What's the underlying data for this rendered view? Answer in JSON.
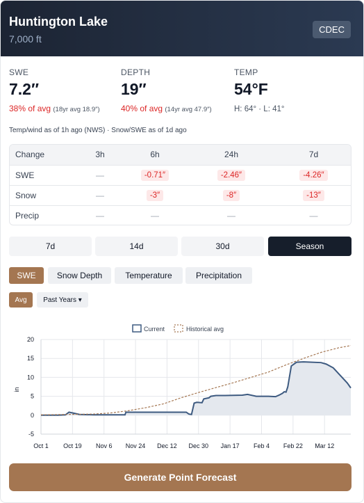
{
  "header": {
    "title": "Huntington Lake",
    "elevation": "7,000 ft",
    "source_badge": "CDEC"
  },
  "metrics": {
    "swe": {
      "label": "SWE",
      "value": "7.2″",
      "pct": "38% of avg",
      "avg_note": "(18yr avg 18.9″)"
    },
    "depth": {
      "label": "DEPTH",
      "value": "19″",
      "pct": "40% of avg",
      "avg_note": "(14yr avg 47.9″)"
    },
    "temp": {
      "label": "TEMP",
      "value": "54°F",
      "hilo": "H: 64° · L: 41°"
    }
  },
  "asof": "Temp/wind as of 1h ago (NWS) · Snow/SWE as of 1d ago",
  "change_table": {
    "headers": [
      "Change",
      "3h",
      "6h",
      "24h",
      "7d"
    ],
    "rows": [
      {
        "label": "SWE",
        "cells": [
          "—",
          "-0.71″",
          "-2.46″",
          "-4.26″"
        ]
      },
      {
        "label": "Snow",
        "cells": [
          "—",
          "-3″",
          "-8″",
          "-13″"
        ]
      },
      {
        "label": "Precip",
        "cells": [
          "—",
          "—",
          "—",
          "—"
        ]
      }
    ]
  },
  "ranges": [
    "7d",
    "14d",
    "30d",
    "Season"
  ],
  "active_range": "Season",
  "metric_tabs": [
    "SWE",
    "Snow Depth",
    "Temperature",
    "Precipitation"
  ],
  "active_metric": "SWE",
  "avg_toggle": "Avg",
  "past_years": "Past Years ▾",
  "colors": {
    "accent": "#a47651",
    "current": "#3d5a80",
    "historical": "#a47651",
    "negative": "#dc2626"
  },
  "chart_data": {
    "type": "area",
    "ylabel": "in",
    "ylim": [
      -5,
      20
    ],
    "yticks": [
      -5,
      0,
      5,
      10,
      15,
      20
    ],
    "x_tick_labels": [
      "Oct 1",
      "Oct 19",
      "Nov 6",
      "Nov 24",
      "Dec 12",
      "Dec 30",
      "Jan 17",
      "Feb 4",
      "Feb 22",
      "Mar 12"
    ],
    "x_tick_days": [
      0,
      18,
      36,
      54,
      72,
      90,
      108,
      126,
      144,
      162
    ],
    "legend": [
      "Current",
      "Historical avg"
    ],
    "legend_position": "top",
    "grid": true,
    "series": [
      {
        "name": "Current",
        "style": "solid-area",
        "points": [
          [
            0,
            0
          ],
          [
            10,
            0
          ],
          [
            14,
            0.1
          ],
          [
            16,
            0.8
          ],
          [
            18,
            0.6
          ],
          [
            22,
            0.2
          ],
          [
            30,
            0.1
          ],
          [
            48,
            0.1
          ],
          [
            48.5,
            0.8
          ],
          [
            60,
            0.8
          ],
          [
            72,
            0.8
          ],
          [
            83,
            0.8
          ],
          [
            84.5,
            0.3
          ],
          [
            86,
            0.2
          ],
          [
            87.5,
            3.2
          ],
          [
            89,
            3.4
          ],
          [
            92,
            3.3
          ],
          [
            93,
            4.3
          ],
          [
            96,
            4.6
          ],
          [
            97,
            5.0
          ],
          [
            100,
            5.2
          ],
          [
            105,
            5.2
          ],
          [
            115,
            5.3
          ],
          [
            118,
            5.5
          ],
          [
            123,
            5.0
          ],
          [
            130,
            5.0
          ],
          [
            134,
            4.9
          ],
          [
            136,
            5.3
          ],
          [
            138,
            5.8
          ],
          [
            138.5,
            6.0
          ],
          [
            139,
            6.2
          ],
          [
            140,
            6.1
          ],
          [
            141,
            7.5
          ],
          [
            143,
            13.0
          ],
          [
            146,
            14.0
          ],
          [
            150,
            14.1
          ],
          [
            160,
            13.9
          ],
          [
            163,
            13.5
          ],
          [
            167,
            12.5
          ],
          [
            171,
            10.5
          ],
          [
            175,
            8.5
          ],
          [
            177,
            7.2
          ]
        ]
      },
      {
        "name": "Historical avg",
        "style": "dashed",
        "points": [
          [
            0,
            0.1
          ],
          [
            15,
            0.2
          ],
          [
            30,
            0.3
          ],
          [
            40,
            0.6
          ],
          [
            50,
            1.2
          ],
          [
            60,
            2.0
          ],
          [
            70,
            3.0
          ],
          [
            80,
            4.6
          ],
          [
            90,
            6.0
          ],
          [
            100,
            7.3
          ],
          [
            110,
            8.6
          ],
          [
            120,
            10.0
          ],
          [
            130,
            11.4
          ],
          [
            140,
            13.3
          ],
          [
            150,
            15.0
          ],
          [
            160,
            16.6
          ],
          [
            170,
            17.8
          ],
          [
            177,
            18.4
          ]
        ]
      }
    ]
  },
  "generate_label": "Generate Point Forecast"
}
